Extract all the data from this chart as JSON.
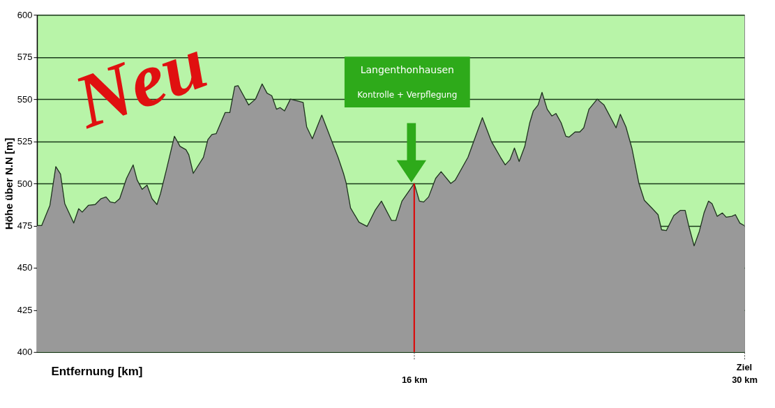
{
  "chart_data": {
    "type": "area",
    "xlabel": "Entfernung [km]",
    "ylabel": "Höhe über N.N [m]",
    "x": [
      0,
      0.2,
      0.55,
      0.8,
      1.0,
      1.18,
      1.56,
      1.77,
      1.92,
      2.18,
      2.47,
      2.72,
      2.93,
      3.11,
      3.31,
      3.51,
      3.8,
      4.08,
      4.25,
      4.46,
      4.67,
      4.88,
      5.09,
      5.24,
      5.48,
      5.83,
      6.07,
      6.32,
      6.44,
      6.63,
      7.06,
      7.25,
      7.42,
      7.6,
      7.98,
      8.18,
      8.39,
      8.53,
      8.98,
      9.27,
      9.55,
      9.76,
      9.96,
      10.16,
      10.31,
      10.5,
      10.75,
      11.29,
      11.44,
      11.68,
      12.08,
      12.48,
      12.77,
      13.0,
      13.11,
      13.3,
      13.66,
      14.0,
      14.34,
      14.61,
      15.04,
      15.22,
      15.48,
      16,
      16.22,
      16.4,
      16.61,
      16.91,
      17.14,
      17.55,
      17.74,
      18.28,
      18.89,
      19.27,
      19.66,
      19.86,
      20.06,
      20.25,
      20.45,
      20.69,
      20.9,
      21.05,
      21.25,
      21.42,
      21.64,
      21.84,
      22.01,
      22.23,
      22.43,
      22.57,
      22.82,
      23.02,
      23.19,
      23.41,
      23.76,
      24.05,
      24.56,
      24.74,
      24.98,
      25.23,
      25.53,
      25.76,
      26.07,
      26.34,
      26.49,
      26.69,
      27.01,
      27.28,
      27.49,
      27.64,
      27.87,
      28.09,
      28.29,
      28.48,
      28.63,
      28.85,
      29.07,
      29.23,
      29.47,
      29.62,
      29.81,
      30
    ],
    "series": [
      {
        "color": "#999999",
        "values": [
          475,
          475,
          487,
          510,
          505.5,
          488,
          476.5,
          485,
          483,
          487,
          487.5,
          491,
          492,
          489,
          488.5,
          491,
          503,
          511,
          502,
          496.5,
          499,
          491,
          487.5,
          494,
          507.5,
          528,
          522,
          520,
          517,
          506,
          515.5,
          526,
          529,
          529.5,
          542,
          542,
          557.5,
          558,
          546.5,
          550,
          559,
          553.5,
          552,
          544,
          545,
          543,
          550,
          548,
          533.5,
          526.5,
          540.5,
          526,
          515.5,
          506,
          500.5,
          485.5,
          477,
          474.5,
          484,
          489.5,
          478,
          478,
          489.5,
          500,
          489.5,
          489,
          492,
          503,
          507,
          500,
          502,
          515.5,
          539,
          525,
          515.5,
          511,
          514,
          521,
          513,
          522,
          536,
          543,
          546.5,
          554,
          544,
          540,
          541.5,
          536,
          528,
          527.5,
          530.5,
          530.5,
          533,
          544,
          550,
          546.5,
          533,
          541,
          533.5,
          521,
          500,
          490,
          485.5,
          481.5,
          472.5,
          472,
          481,
          484,
          484,
          475,
          463,
          471.5,
          482.5,
          489.5,
          488,
          480.5,
          482.5,
          480,
          480.5,
          481.5,
          476.5,
          475
        ]
      }
    ],
    "xlim": [
      0,
      30
    ],
    "xticks": [
      {
        "value": 16,
        "label": "16 km"
      },
      {
        "value": 30,
        "label": "30 km"
      }
    ],
    "ylim": [
      400,
      600
    ],
    "yticks": [
      400,
      425,
      450,
      475,
      500,
      525,
      550,
      575,
      600
    ],
    "grid": "y",
    "ref_lines": [
      {
        "axis": "x",
        "value": 16,
        "color": "#e00000"
      }
    ],
    "annotations": [
      "Neu",
      "Langenthonhausen",
      "Kontrolle +  Verpflegung",
      "Ziel"
    ]
  }
}
